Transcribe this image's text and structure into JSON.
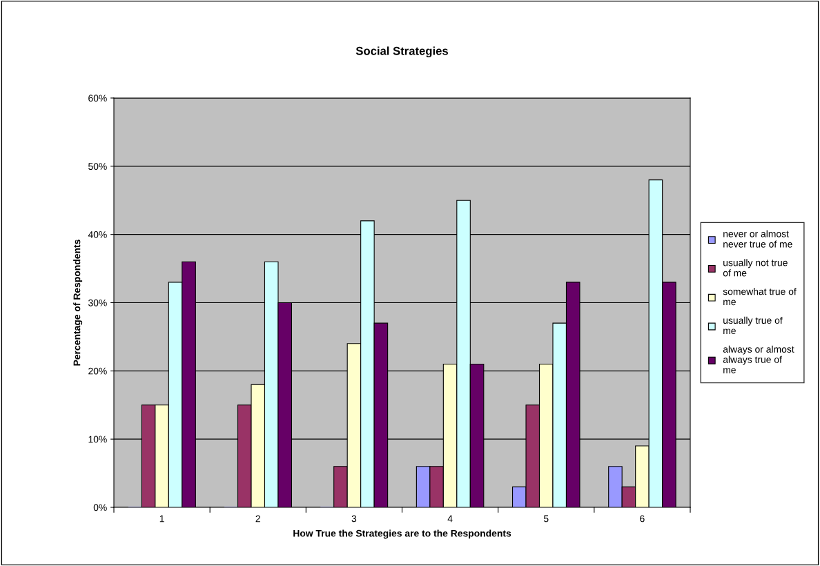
{
  "chart_data": {
    "type": "bar",
    "title": "Social Strategies",
    "xlabel": "How True the Strategies are to the Respondents",
    "ylabel": "Percentage of Respondents",
    "categories": [
      "1",
      "2",
      "3",
      "4",
      "5",
      "6"
    ],
    "series": [
      {
        "name": "never or almost never true of me",
        "color": "#9999ff",
        "values": [
          0,
          0,
          0,
          6,
          3,
          6
        ]
      },
      {
        "name": "usually not true of me",
        "color": "#993366",
        "values": [
          15,
          15,
          6,
          6,
          15,
          3
        ]
      },
      {
        "name": "somewhat true of me",
        "color": "#ffffcc",
        "values": [
          15,
          18,
          24,
          21,
          21,
          9
        ]
      },
      {
        "name": "usually true of me",
        "color": "#ccffff",
        "values": [
          33,
          36,
          42,
          45,
          27,
          48
        ]
      },
      {
        "name": "always or almost always true of me",
        "color": "#660066",
        "values": [
          36,
          30,
          27,
          21,
          33,
          33
        ]
      }
    ],
    "ylim": [
      0,
      60
    ],
    "yticks": [
      {
        "value": 0,
        "label": "0%"
      },
      {
        "value": 10,
        "label": "10%"
      },
      {
        "value": 20,
        "label": "20%"
      },
      {
        "value": 30,
        "label": "30%"
      },
      {
        "value": 40,
        "label": "40%"
      },
      {
        "value": 50,
        "label": "50%"
      },
      {
        "value": 60,
        "label": "60%"
      }
    ],
    "grid": "y",
    "legend": "right"
  }
}
